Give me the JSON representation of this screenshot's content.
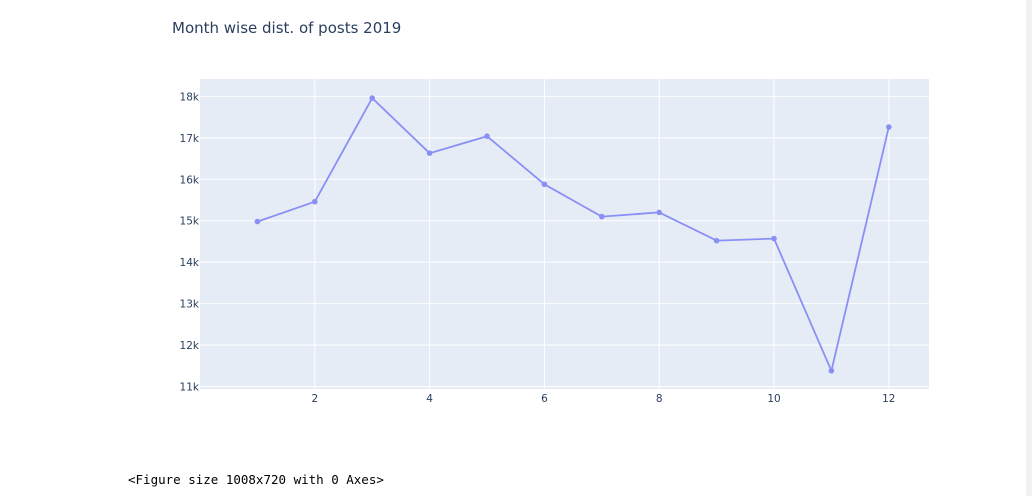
{
  "chart_data": {
    "type": "line",
    "title": "Month wise dist. of posts 2019",
    "xlabel": "",
    "ylabel": "",
    "x": [
      1,
      2,
      3,
      4,
      5,
      6,
      7,
      8,
      9,
      10,
      11,
      12
    ],
    "series": [
      {
        "values": [
          14980,
          15460,
          17960,
          16630,
          17040,
          15880,
          15100,
          15200,
          14520,
          14570,
          11380,
          17260
        ]
      }
    ],
    "xlim": [
      0.0,
      12.7
    ],
    "ylim": [
      10940,
      18420
    ],
    "xticks": [
      2,
      4,
      6,
      8,
      10,
      12
    ],
    "xtick_labels": [
      "2",
      "4",
      "6",
      "8",
      "10",
      "12"
    ],
    "yticks": [
      11000,
      12000,
      13000,
      14000,
      15000,
      16000,
      17000,
      18000
    ],
    "ytick_labels": [
      "11k",
      "12k",
      "13k",
      "14k",
      "15k",
      "16k",
      "17k",
      "18k"
    ],
    "grid": true,
    "colors": {
      "line": "#8a8ff5",
      "plot_bg": "#e5ecf6",
      "grid": "#ffffff",
      "text": "#2a3f5f"
    }
  },
  "output": {
    "text": "<Figure size 1008x720 with 0 Axes>"
  }
}
